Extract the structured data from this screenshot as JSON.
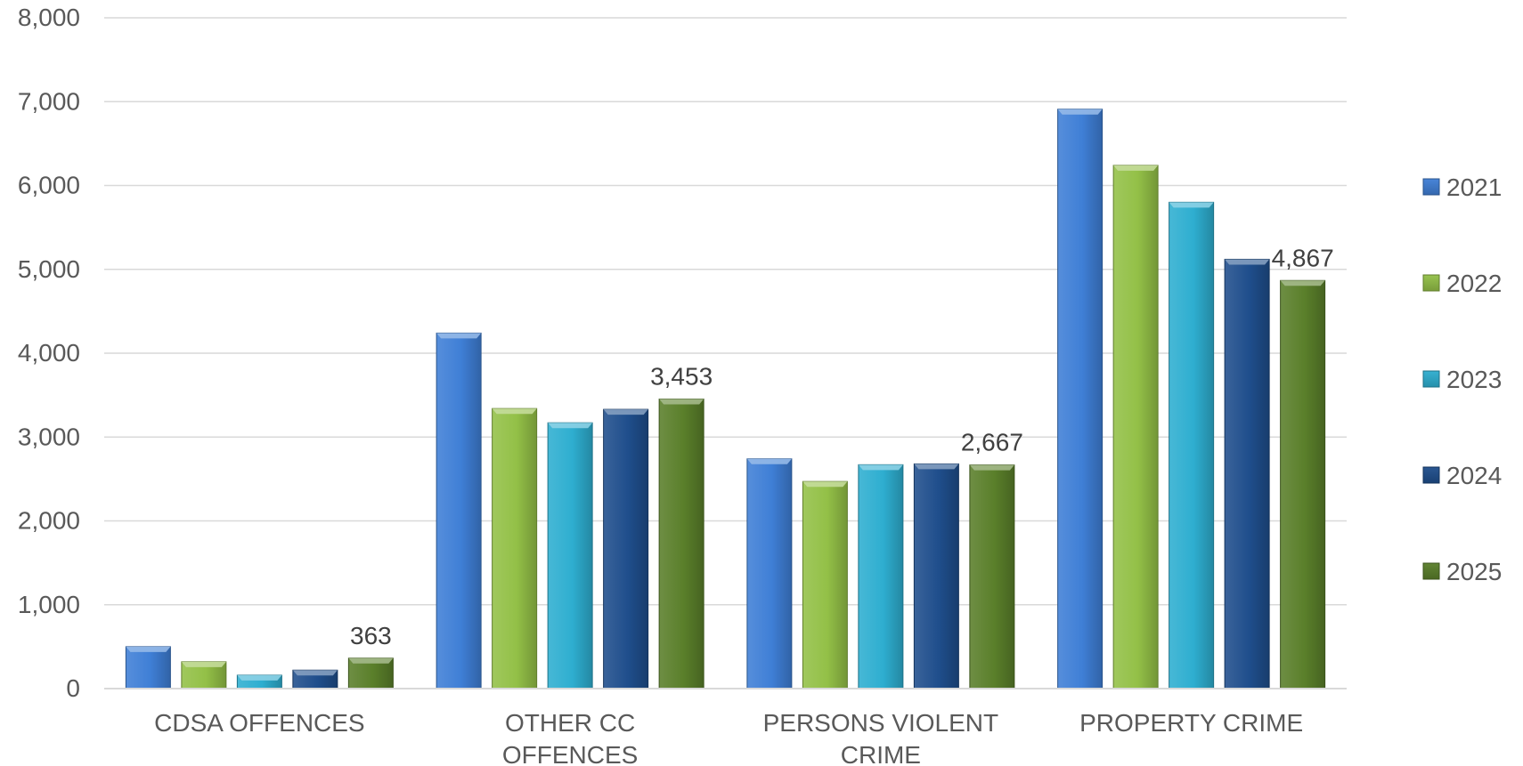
{
  "chart_data": {
    "type": "bar",
    "categories": [
      [
        "CDSA OFFENCES"
      ],
      [
        "OTHER CC",
        "OFFENCES"
      ],
      [
        "PERSONS VIOLENT",
        "CRIME"
      ],
      [
        "PROPERTY CRIME"
      ]
    ],
    "series": [
      {
        "name": "2021",
        "values": [
          500,
          4240,
          2740,
          6910
        ],
        "color": "#3f7fd6"
      },
      {
        "name": "2022",
        "values": [
          320,
          3340,
          2470,
          6240
        ],
        "color": "#93c047"
      },
      {
        "name": "2023",
        "values": [
          160,
          3170,
          2670,
          5800
        ],
        "color": "#2eaed0"
      },
      {
        "name": "2024",
        "values": [
          220,
          3330,
          2680,
          5120
        ],
        "color": "#1f4e8c"
      },
      {
        "name": "2025",
        "values": [
          363,
          3453,
          2667,
          4867
        ],
        "color": "#5a7f2a"
      }
    ],
    "data_labels": {
      "series": "2025",
      "texts": [
        "363",
        "3,453",
        "2,667",
        "4,867"
      ]
    },
    "ylim": [
      0,
      8000
    ],
    "yticks": [
      0,
      1000,
      2000,
      3000,
      4000,
      5000,
      6000,
      7000,
      8000
    ],
    "ytick_labels": [
      "0",
      "1,000",
      "2,000",
      "3,000",
      "4,000",
      "5,000",
      "6,000",
      "7,000",
      "8,000"
    ],
    "grid": true,
    "legend_position": "right"
  }
}
